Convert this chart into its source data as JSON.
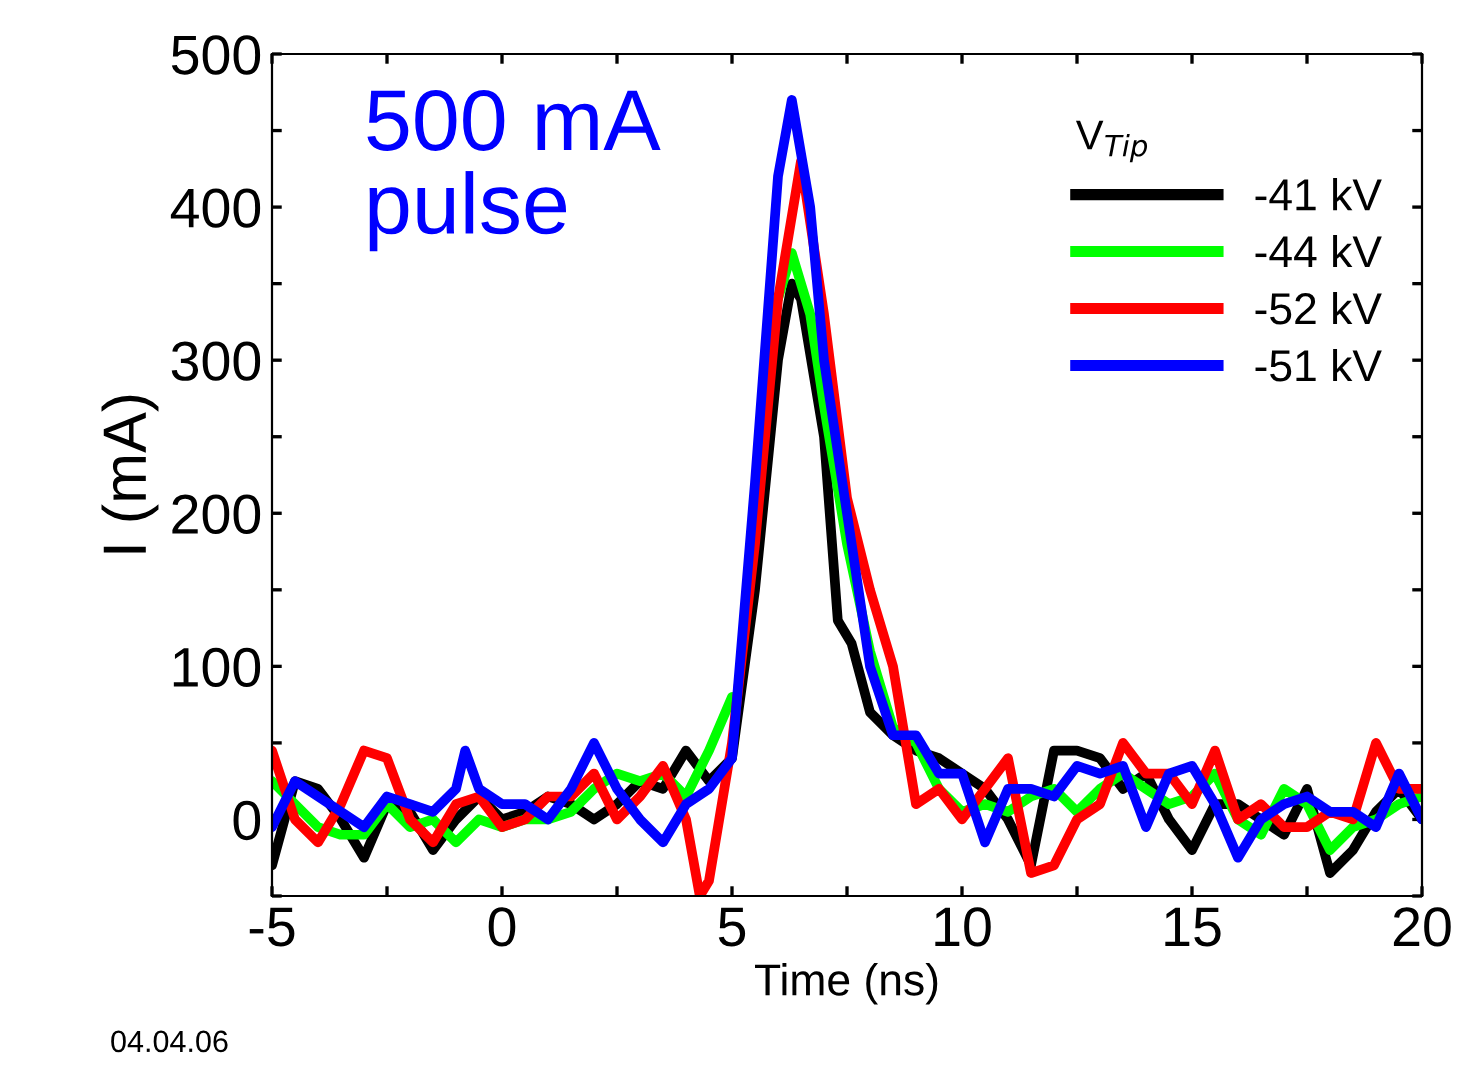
{
  "chart_data": {
    "type": "line",
    "xlabel": "Time (ns)",
    "ylabel": "I (mA)",
    "legend_title": "V$_{Tip}$",
    "legend": "top right",
    "grid": false,
    "line_style": "solid",
    "marker": "none",
    "xlim": [
      -5,
      20
    ],
    "ylim": [
      -50,
      500
    ],
    "xticks": [
      -5,
      {
        "value": -2.5,
        "label": null
      },
      0,
      {
        "value": 2.5,
        "label": null
      },
      5,
      {
        "value": 7.5,
        "label": null
      },
      10,
      {
        "value": 12.5,
        "label": null
      },
      15,
      {
        "value": 17.5,
        "label": null
      },
      20
    ],
    "yticks": [
      {
        "value": -50,
        "label": null
      },
      0,
      {
        "value": 50,
        "label": null
      },
      100,
      {
        "value": 150,
        "label": null
      },
      200,
      {
        "value": 250,
        "label": null
      },
      300,
      {
        "value": 350,
        "label": null
      },
      400,
      {
        "value": 450,
        "label": null
      },
      500
    ],
    "annotations": [
      "500 mA\npulse",
      "04.04.06"
    ],
    "series": [
      {
        "name": "-41 kV",
        "color": "#000000",
        "x": [
          -5,
          -4.5,
          -4,
          -3.5,
          -3,
          -2.5,
          -2,
          -1.5,
          -1,
          -0.5,
          0,
          0.5,
          1,
          1.5,
          2,
          2.5,
          3,
          3.5,
          4,
          4.5,
          5,
          5.5,
          6,
          6.3,
          6.5,
          7,
          7.3,
          7.6,
          8,
          8.5,
          9,
          9.5,
          10,
          10.5,
          11,
          11.5,
          12,
          12.5,
          13,
          13.5,
          14,
          14.5,
          15,
          15.5,
          16,
          17,
          17.5,
          18,
          18.5,
          19,
          19.5,
          20
        ],
        "values": [
          -30,
          25,
          20,
          0,
          -25,
          10,
          5,
          -20,
          0,
          15,
          0,
          5,
          15,
          10,
          0,
          10,
          25,
          20,
          45,
          25,
          40,
          150,
          300,
          350,
          340,
          250,
          130,
          115,
          70,
          55,
          45,
          40,
          30,
          20,
          0,
          -30,
          45,
          45,
          40,
          20,
          30,
          0,
          -20,
          10,
          10,
          -10,
          20,
          -35,
          -20,
          5,
          20,
          0
        ]
      },
      {
        "name": "-44 kV",
        "color": "#00ff00",
        "x": [
          -5,
          -4.5,
          -4,
          -3.5,
          -3,
          -2.5,
          -2,
          -1.5,
          -1,
          -0.5,
          0,
          0.5,
          1,
          1.5,
          2,
          2.5,
          3,
          3.5,
          4,
          4.5,
          5,
          5.5,
          6,
          6.3,
          6.7,
          7,
          7.5,
          8,
          8.5,
          9,
          9.5,
          10,
          10.5,
          11,
          11.5,
          12,
          12.5,
          13,
          13.5,
          14,
          14.5,
          15,
          15.5,
          16,
          16.5,
          17,
          17.5,
          18,
          18.5,
          19,
          19.5,
          20
        ],
        "values": [
          25,
          10,
          -5,
          -10,
          -10,
          10,
          -5,
          0,
          -15,
          0,
          -5,
          0,
          0,
          5,
          20,
          30,
          25,
          30,
          15,
          45,
          80,
          null,
          340,
          370,
          330,
          270,
          180,
          110,
          60,
          50,
          20,
          5,
          10,
          5,
          15,
          20,
          5,
          20,
          30,
          20,
          10,
          15,
          30,
          0,
          -10,
          20,
          10,
          -20,
          -5,
          0,
          10,
          15
        ]
      },
      {
        "name": "-52 kV",
        "color": "#ff0000",
        "x": [
          -5,
          -4.5,
          -4,
          -3.5,
          -3,
          -2.5,
          -2,
          -1.5,
          -1,
          -0.5,
          0,
          0.5,
          1,
          1.5,
          2,
          2.5,
          3,
          3.5,
          4,
          4.3,
          4.5,
          5,
          5.5,
          6,
          6.5,
          7,
          7.5,
          8,
          8.5,
          9,
          9.5,
          10,
          10.5,
          11,
          11.5,
          12,
          12.5,
          13,
          13.5,
          14,
          14.5,
          15,
          15.5,
          16,
          16.5,
          17,
          17.5,
          18,
          18.5,
          19,
          19.5,
          20
        ],
        "values": [
          45,
          0,
          -15,
          10,
          45,
          40,
          0,
          -15,
          10,
          15,
          -5,
          0,
          15,
          15,
          30,
          0,
          15,
          35,
          0,
          -50,
          -40,
          50,
          180,
          340,
          430,
          330,
          210,
          150,
          100,
          10,
          20,
          0,
          20,
          40,
          -35,
          -30,
          0,
          10,
          50,
          30,
          30,
          10,
          45,
          0,
          10,
          -5,
          -5,
          5,
          0,
          50,
          20,
          20
        ]
      },
      {
        "name": "-51 kV",
        "color": "#0000ff",
        "x": [
          -5,
          -4.5,
          -4,
          -3.5,
          -3,
          -2.5,
          -2,
          -1.5,
          -1,
          -0.8,
          -0.5,
          0,
          0.5,
          1,
          1.5,
          2,
          2.5,
          3,
          3.5,
          4,
          4.5,
          5,
          5.5,
          6,
          6.3,
          6.7,
          7,
          7.5,
          8,
          8.5,
          9,
          9.5,
          10,
          10.5,
          11,
          11.5,
          12,
          12.5,
          13,
          13.5,
          14,
          14.5,
          15,
          15.5,
          16,
          16.5,
          17,
          17.5,
          18,
          18.5,
          19,
          19.5,
          20
        ],
        "values": [
          -5,
          25,
          15,
          5,
          -5,
          15,
          10,
          5,
          20,
          45,
          20,
          10,
          10,
          0,
          20,
          50,
          20,
          0,
          -15,
          10,
          20,
          40,
          220,
          420,
          470,
          400,
          300,
          200,
          100,
          55,
          55,
          30,
          30,
          -15,
          20,
          20,
          15,
          35,
          30,
          35,
          -5,
          30,
          35,
          10,
          -25,
          0,
          10,
          15,
          5,
          5,
          -5,
          30,
          0
        ]
      }
    ]
  }
}
